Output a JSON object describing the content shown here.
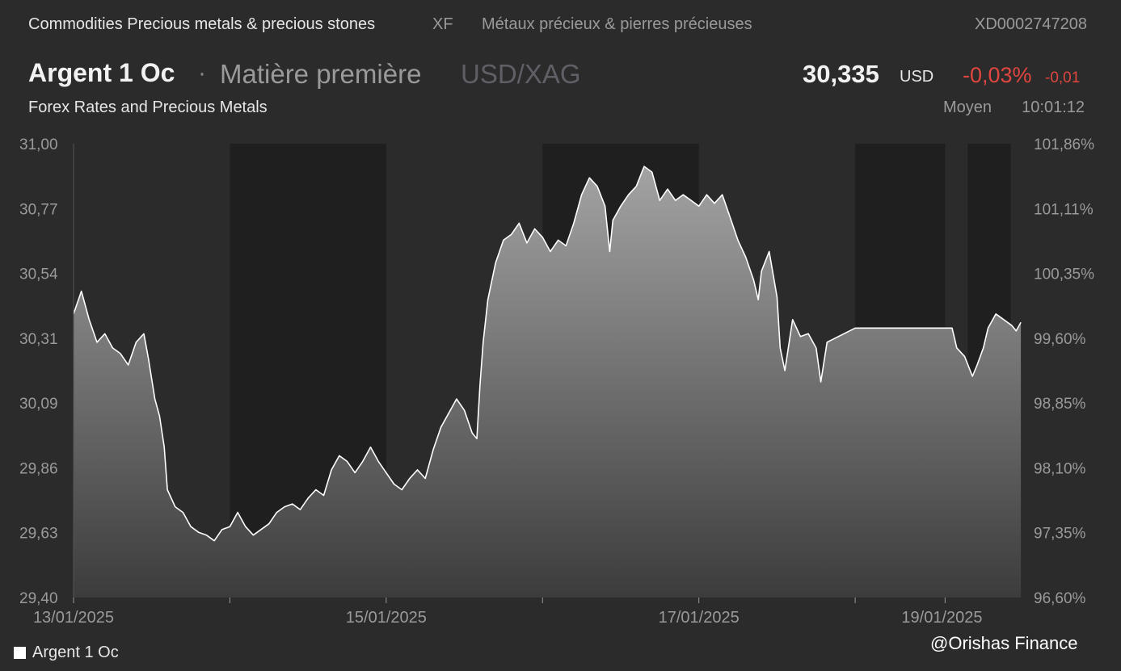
{
  "topbar": {
    "category": "Commodities Precious metals & precious stones",
    "exchange": "XF",
    "category_fr": "Métaux précieux & pierres précieuses",
    "isin": "XD0002747208"
  },
  "header": {
    "name": "Argent 1 Oc",
    "separator": "·",
    "type": "Matière première",
    "pair": "USD/XAG",
    "price": "30,335",
    "currency": "USD",
    "change_pct": "-0,03%",
    "change_abs": "-0,01",
    "provider": "Forex Rates and Precious Metals",
    "mode": "Moyen",
    "time": "10:01:12"
  },
  "colors": {
    "background": "#2b2b2b",
    "shade_band": "#1f1f1f",
    "line": "#ffffff",
    "area_top": "#a3a3a3",
    "area_bottom": "#3c3c3c",
    "negative": "#e0463f"
  },
  "legend": {
    "label": "Argent 1 Oc"
  },
  "watermark": "@Orishas Finance",
  "chart_data": {
    "type": "area",
    "series": [
      {
        "name": "Argent 1 Oc",
        "points": [
          [
            0.0,
            30.4
          ],
          [
            0.05,
            30.48
          ],
          [
            0.1,
            30.38
          ],
          [
            0.15,
            30.3
          ],
          [
            0.2,
            30.33
          ],
          [
            0.25,
            30.28
          ],
          [
            0.3,
            30.26
          ],
          [
            0.35,
            30.22
          ],
          [
            0.4,
            30.3
          ],
          [
            0.45,
            30.33
          ],
          [
            0.48,
            30.24
          ],
          [
            0.52,
            30.1
          ],
          [
            0.55,
            30.04
          ],
          [
            0.58,
            29.93
          ],
          [
            0.6,
            29.78
          ],
          [
            0.65,
            29.72
          ],
          [
            0.7,
            29.7
          ],
          [
            0.75,
            29.65
          ],
          [
            0.8,
            29.63
          ],
          [
            0.85,
            29.62
          ],
          [
            0.9,
            29.6
          ],
          [
            0.95,
            29.64
          ],
          [
            1.0,
            29.65
          ],
          [
            1.05,
            29.7
          ],
          [
            1.1,
            29.65
          ],
          [
            1.15,
            29.62
          ],
          [
            1.2,
            29.64
          ],
          [
            1.25,
            29.66
          ],
          [
            1.3,
            29.7
          ],
          [
            1.35,
            29.72
          ],
          [
            1.4,
            29.73
          ],
          [
            1.45,
            29.71
          ],
          [
            1.5,
            29.75
          ],
          [
            1.55,
            29.78
          ],
          [
            1.6,
            29.76
          ],
          [
            1.65,
            29.85
          ],
          [
            1.7,
            29.9
          ],
          [
            1.75,
            29.88
          ],
          [
            1.8,
            29.84
          ],
          [
            1.85,
            29.88
          ],
          [
            1.9,
            29.93
          ],
          [
            1.95,
            29.88
          ],
          [
            2.0,
            29.84
          ],
          [
            2.05,
            29.8
          ],
          [
            2.1,
            29.78
          ],
          [
            2.15,
            29.82
          ],
          [
            2.2,
            29.85
          ],
          [
            2.25,
            29.82
          ],
          [
            2.3,
            29.92
          ],
          [
            2.35,
            30.0
          ],
          [
            2.4,
            30.05
          ],
          [
            2.45,
            30.1
          ],
          [
            2.5,
            30.06
          ],
          [
            2.55,
            29.98
          ],
          [
            2.58,
            29.96
          ],
          [
            2.6,
            30.15
          ],
          [
            2.62,
            30.3
          ],
          [
            2.65,
            30.45
          ],
          [
            2.7,
            30.58
          ],
          [
            2.75,
            30.66
          ],
          [
            2.8,
            30.68
          ],
          [
            2.85,
            30.72
          ],
          [
            2.9,
            30.65
          ],
          [
            2.95,
            30.7
          ],
          [
            3.0,
            30.67
          ],
          [
            3.05,
            30.62
          ],
          [
            3.1,
            30.66
          ],
          [
            3.15,
            30.64
          ],
          [
            3.2,
            30.72
          ],
          [
            3.25,
            30.82
          ],
          [
            3.3,
            30.88
          ],
          [
            3.35,
            30.85
          ],
          [
            3.4,
            30.78
          ],
          [
            3.43,
            30.62
          ],
          [
            3.45,
            30.73
          ],
          [
            3.5,
            30.78
          ],
          [
            3.55,
            30.82
          ],
          [
            3.6,
            30.85
          ],
          [
            3.65,
            30.92
          ],
          [
            3.7,
            30.9
          ],
          [
            3.75,
            30.8
          ],
          [
            3.8,
            30.84
          ],
          [
            3.85,
            30.8
          ],
          [
            3.9,
            30.82
          ],
          [
            3.95,
            30.8
          ],
          [
            4.0,
            30.78
          ],
          [
            4.05,
            30.82
          ],
          [
            4.1,
            30.79
          ],
          [
            4.15,
            30.82
          ],
          [
            4.2,
            30.74
          ],
          [
            4.25,
            30.66
          ],
          [
            4.3,
            30.6
          ],
          [
            4.35,
            30.52
          ],
          [
            4.38,
            30.45
          ],
          [
            4.4,
            30.55
          ],
          [
            4.45,
            30.62
          ],
          [
            4.5,
            30.46
          ],
          [
            4.52,
            30.28
          ],
          [
            4.55,
            30.2
          ],
          [
            4.6,
            30.38
          ],
          [
            4.65,
            30.32
          ],
          [
            4.7,
            30.33
          ],
          [
            4.75,
            30.28
          ],
          [
            4.78,
            30.16
          ],
          [
            4.82,
            30.3
          ],
          [
            5.0,
            30.35
          ],
          [
            5.2,
            30.35
          ],
          [
            5.4,
            30.35
          ],
          [
            5.6,
            30.35
          ],
          [
            5.62,
            30.35
          ],
          [
            5.65,
            30.28
          ],
          [
            5.7,
            30.25
          ],
          [
            5.75,
            30.18
          ],
          [
            5.78,
            30.22
          ],
          [
            5.82,
            30.28
          ],
          [
            5.85,
            30.35
          ],
          [
            5.9,
            30.4
          ],
          [
            5.95,
            30.38
          ],
          [
            6.0,
            30.36
          ],
          [
            6.03,
            30.34
          ],
          [
            6.06,
            30.37
          ]
        ]
      }
    ],
    "x_type": "time",
    "x_tick_labels": [
      "13/01/2025",
      "15/01/2025",
      "17/01/2025",
      "19/01/2025"
    ],
    "x_tick_positions": [
      0,
      2,
      4,
      5.555
    ],
    "y_left_ticks": [
      "31,00",
      "30,77",
      "30,54",
      "30,31",
      "30,09",
      "29,86",
      "29,63",
      "29,40"
    ],
    "y_right_ticks": [
      "101,86%",
      "101,11%",
      "100,35%",
      "99,60%",
      "98,85%",
      "98,10%",
      "97,35%",
      "96,60%"
    ],
    "ylim": [
      29.4,
      31.0
    ],
    "shaded_periods": [
      [
        1,
        2
      ],
      [
        3,
        4
      ],
      [
        5,
        5.575
      ],
      [
        5.72,
        5.995
      ]
    ],
    "grid": false,
    "legend": "bottom-left"
  }
}
